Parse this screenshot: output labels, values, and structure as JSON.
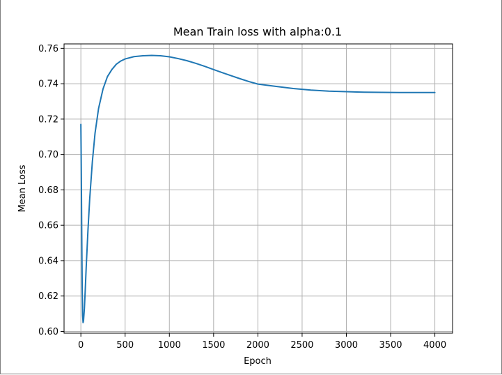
{
  "chart_data": {
    "type": "line",
    "title": "Mean Train loss with alpha:0.1",
    "xlabel": "Epoch",
    "ylabel": "Mean Loss",
    "xlim": [
      -190,
      4200
    ],
    "ylim": [
      0.599,
      0.7625
    ],
    "xticks": [
      0,
      500,
      1000,
      1500,
      2000,
      2500,
      3000,
      3500,
      4000
    ],
    "xtick_labels": [
      "0",
      "500",
      "1000",
      "1500",
      "2000",
      "2500",
      "3000",
      "3500",
      "4000"
    ],
    "yticks": [
      0.6,
      0.62,
      0.64,
      0.66,
      0.68,
      0.7,
      0.72,
      0.74,
      0.76
    ],
    "ytick_labels": [
      "0.60",
      "0.62",
      "0.64",
      "0.66",
      "0.68",
      "0.70",
      "0.72",
      "0.74",
      "0.76"
    ],
    "grid": true,
    "color": "#1f77b4",
    "series": [
      {
        "name": "",
        "x": [
          0,
          5,
          10,
          15,
          20,
          25,
          30,
          40,
          50,
          60,
          80,
          100,
          130,
          160,
          200,
          250,
          300,
          350,
          400,
          450,
          500,
          600,
          700,
          800,
          900,
          1000,
          1100,
          1200,
          1300,
          1400,
          1500,
          1600,
          1700,
          1800,
          1900,
          2000,
          2200,
          2400,
          2600,
          2800,
          3000,
          3200,
          3400,
          3600,
          3800,
          4000
        ],
        "y": [
          0.717,
          0.69,
          0.655,
          0.625,
          0.609,
          0.605,
          0.606,
          0.613,
          0.624,
          0.636,
          0.657,
          0.675,
          0.696,
          0.712,
          0.726,
          0.737,
          0.744,
          0.748,
          0.751,
          0.7528,
          0.754,
          0.7553,
          0.7558,
          0.756,
          0.7558,
          0.7552,
          0.7542,
          0.753,
          0.7515,
          0.7498,
          0.748,
          0.7462,
          0.7445,
          0.7428,
          0.7412,
          0.7398,
          0.7385,
          0.7373,
          0.7364,
          0.7358,
          0.7355,
          0.7352,
          0.7351,
          0.735,
          0.735,
          0.735
        ]
      }
    ]
  }
}
